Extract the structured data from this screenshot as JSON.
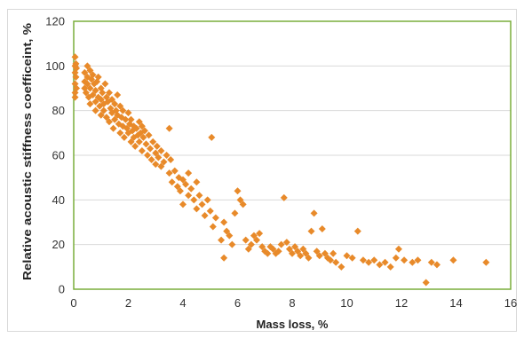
{
  "chart_data": {
    "type": "scatter",
    "title": "",
    "xlabel": "Mass loss, %",
    "ylabel": "Relative acoustic stiffness coefficeint, %",
    "xlim": [
      0,
      16
    ],
    "ylim": [
      0,
      120
    ],
    "x_ticks": [
      0,
      2,
      4,
      6,
      8,
      10,
      12,
      14,
      16
    ],
    "y_ticks": [
      0,
      20,
      40,
      60,
      80,
      100,
      120
    ],
    "grid": "horizontal",
    "legend": "none",
    "marker": "diamond",
    "colors": {
      "marker": "#E88A2A",
      "plot_border": "#7AAE3B",
      "gridline": "#d9d9d9"
    },
    "series": [
      {
        "points": [
          [
            0.05,
            104
          ],
          [
            0.05,
            100
          ],
          [
            0.05,
            97
          ],
          [
            0.05,
            92
          ],
          [
            0.05,
            88
          ],
          [
            0.05,
            86
          ],
          [
            0.08,
            101
          ],
          [
            0.08,
            95
          ],
          [
            0.1,
            99
          ],
          [
            0.1,
            90
          ],
          [
            0.4,
            97
          ],
          [
            0.4,
            93
          ],
          [
            0.4,
            90
          ],
          [
            0.45,
            88
          ],
          [
            0.5,
            100
          ],
          [
            0.5,
            95
          ],
          [
            0.5,
            92
          ],
          [
            0.55,
            86
          ],
          [
            0.6,
            98
          ],
          [
            0.6,
            90
          ],
          [
            0.6,
            83
          ],
          [
            0.65,
            94
          ],
          [
            0.7,
            96
          ],
          [
            0.7,
            87
          ],
          [
            0.75,
            92
          ],
          [
            0.8,
            89
          ],
          [
            0.8,
            84
          ],
          [
            0.8,
            80
          ],
          [
            0.85,
            93
          ],
          [
            0.9,
            95
          ],
          [
            0.9,
            86
          ],
          [
            0.95,
            82
          ],
          [
            1.0,
            90
          ],
          [
            1.0,
            85
          ],
          [
            1.0,
            78
          ],
          [
            1.05,
            88
          ],
          [
            1.1,
            83
          ],
          [
            1.1,
            80
          ],
          [
            1.15,
            92
          ],
          [
            1.2,
            86
          ],
          [
            1.2,
            77
          ],
          [
            1.25,
            84
          ],
          [
            1.3,
            88
          ],
          [
            1.3,
            75
          ],
          [
            1.35,
            81
          ],
          [
            1.4,
            85
          ],
          [
            1.4,
            79
          ],
          [
            1.45,
            72
          ],
          [
            1.5,
            83
          ],
          [
            1.5,
            76
          ],
          [
            1.55,
            80
          ],
          [
            1.6,
            87
          ],
          [
            1.6,
            78
          ],
          [
            1.65,
            74
          ],
          [
            1.7,
            82
          ],
          [
            1.7,
            70
          ],
          [
            1.75,
            77
          ],
          [
            1.8,
            80
          ],
          [
            1.8,
            73
          ],
          [
            1.85,
            68
          ],
          [
            1.9,
            76
          ],
          [
            1.95,
            72
          ],
          [
            2.0,
            79
          ],
          [
            2.0,
            70
          ],
          [
            2.05,
            74
          ],
          [
            2.1,
            66
          ],
          [
            2.1,
            76
          ],
          [
            2.15,
            71
          ],
          [
            2.2,
            73
          ],
          [
            2.2,
            68
          ],
          [
            2.25,
            64
          ],
          [
            2.3,
            72
          ],
          [
            2.35,
            69
          ],
          [
            2.4,
            75
          ],
          [
            2.4,
            66
          ],
          [
            2.45,
            70
          ],
          [
            2.5,
            62
          ],
          [
            2.5,
            73
          ],
          [
            2.55,
            68
          ],
          [
            2.6,
            71
          ],
          [
            2.65,
            65
          ],
          [
            2.7,
            60
          ],
          [
            2.75,
            69
          ],
          [
            2.8,
            63
          ],
          [
            2.85,
            58
          ],
          [
            2.9,
            66
          ],
          [
            3.0,
            61
          ],
          [
            3.0,
            56
          ],
          [
            3.05,
            64
          ],
          [
            3.1,
            59
          ],
          [
            3.2,
            62
          ],
          [
            3.2,
            55
          ],
          [
            3.3,
            57
          ],
          [
            3.4,
            60
          ],
          [
            3.5,
            72
          ],
          [
            3.5,
            52
          ],
          [
            3.55,
            58
          ],
          [
            3.6,
            48
          ],
          [
            3.7,
            53
          ],
          [
            3.8,
            46
          ],
          [
            3.85,
            50
          ],
          [
            3.9,
            44
          ],
          [
            4.0,
            49
          ],
          [
            4.0,
            38
          ],
          [
            4.1,
            47
          ],
          [
            4.2,
            52
          ],
          [
            4.2,
            42
          ],
          [
            4.3,
            45
          ],
          [
            4.4,
            40
          ],
          [
            4.5,
            48
          ],
          [
            4.5,
            36
          ],
          [
            4.6,
            42
          ],
          [
            4.7,
            38
          ],
          [
            4.8,
            33
          ],
          [
            4.9,
            40
          ],
          [
            5.0,
            35
          ],
          [
            5.05,
            68
          ],
          [
            5.1,
            28
          ],
          [
            5.2,
            32
          ],
          [
            5.4,
            22
          ],
          [
            5.5,
            14
          ],
          [
            5.5,
            30
          ],
          [
            5.6,
            26
          ],
          [
            5.7,
            24
          ],
          [
            5.8,
            20
          ],
          [
            5.9,
            34
          ],
          [
            6.0,
            44
          ],
          [
            6.1,
            40
          ],
          [
            6.2,
            38
          ],
          [
            6.3,
            22
          ],
          [
            6.4,
            18
          ],
          [
            6.5,
            20
          ],
          [
            6.6,
            24
          ],
          [
            6.7,
            22
          ],
          [
            6.8,
            25
          ],
          [
            6.9,
            19
          ],
          [
            7.0,
            17
          ],
          [
            7.1,
            16
          ],
          [
            7.2,
            19
          ],
          [
            7.3,
            18
          ],
          [
            7.4,
            16
          ],
          [
            7.5,
            17
          ],
          [
            7.6,
            20
          ],
          [
            7.7,
            41
          ],
          [
            7.8,
            21
          ],
          [
            7.9,
            18
          ],
          [
            8.0,
            16
          ],
          [
            8.1,
            19
          ],
          [
            8.2,
            17
          ],
          [
            8.3,
            15
          ],
          [
            8.4,
            18
          ],
          [
            8.5,
            16
          ],
          [
            8.6,
            14
          ],
          [
            8.7,
            26
          ],
          [
            8.8,
            34
          ],
          [
            8.9,
            17
          ],
          [
            9.0,
            15
          ],
          [
            9.1,
            27
          ],
          [
            9.2,
            16
          ],
          [
            9.3,
            14
          ],
          [
            9.4,
            13
          ],
          [
            9.5,
            16
          ],
          [
            9.6,
            12
          ],
          [
            9.8,
            10
          ],
          [
            10.0,
            15
          ],
          [
            10.2,
            14
          ],
          [
            10.4,
            26
          ],
          [
            10.6,
            13
          ],
          [
            10.8,
            12
          ],
          [
            11.0,
            13
          ],
          [
            11.2,
            11
          ],
          [
            11.4,
            12
          ],
          [
            11.6,
            10
          ],
          [
            11.8,
            14
          ],
          [
            11.9,
            18
          ],
          [
            12.1,
            13
          ],
          [
            12.4,
            12
          ],
          [
            12.6,
            13
          ],
          [
            12.9,
            3
          ],
          [
            13.1,
            12
          ],
          [
            13.3,
            11
          ],
          [
            13.9,
            13
          ],
          [
            15.1,
            12
          ]
        ]
      }
    ]
  }
}
